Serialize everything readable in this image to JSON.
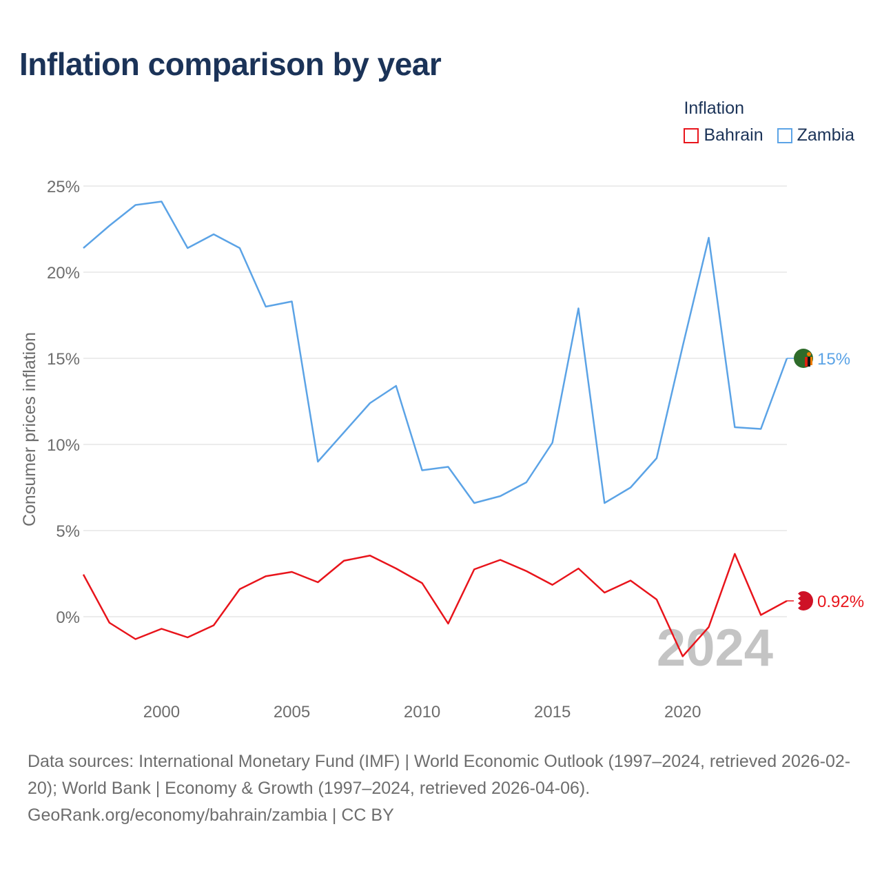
{
  "chart_data": {
    "type": "line",
    "title": "Inflation comparison by year",
    "ylabel": "Consumer prices inflation",
    "xlabel": "",
    "x": [
      1997,
      1998,
      1999,
      2000,
      2001,
      2002,
      2003,
      2004,
      2005,
      2006,
      2007,
      2008,
      2009,
      2010,
      2011,
      2012,
      2013,
      2014,
      2015,
      2016,
      2017,
      2018,
      2019,
      2020,
      2021,
      2022,
      2023,
      2024
    ],
    "xlim": [
      1997,
      2024
    ],
    "ylim": [
      -5,
      25
    ],
    "xticks": [
      2000,
      2005,
      2010,
      2015,
      2020
    ],
    "yticks": [
      0,
      5,
      10,
      15,
      20,
      25
    ],
    "ytick_labels": [
      "0%",
      "5%",
      "10%",
      "15%",
      "20%",
      "25%"
    ],
    "xtick_labels": [
      "2000",
      "2005",
      "2010",
      "2015",
      "2020"
    ],
    "legend_title": "Inflation",
    "legend_position": "top-right",
    "grid": true,
    "series": [
      {
        "name": "Bahrain",
        "color": "#e8141b",
        "end_label": "0.92%",
        "values": [
          2.45,
          -0.35,
          -1.3,
          -0.7,
          -1.2,
          -0.5,
          1.6,
          2.35,
          2.6,
          2.0,
          3.25,
          3.55,
          2.8,
          1.95,
          -0.4,
          2.75,
          3.3,
          2.65,
          1.85,
          2.8,
          1.4,
          2.1,
          1.0,
          -2.3,
          -0.6,
          3.65,
          0.1,
          0.92
        ]
      },
      {
        "name": "Zambia",
        "color": "#5ba3e6",
        "end_label": "15%",
        "values": [
          21.4,
          22.7,
          23.9,
          24.1,
          21.4,
          22.2,
          21.4,
          18.0,
          18.3,
          9.0,
          10.7,
          12.4,
          13.4,
          8.5,
          8.7,
          6.6,
          7.0,
          7.8,
          10.1,
          17.9,
          6.6,
          7.5,
          9.2,
          15.7,
          22.0,
          11.0,
          10.9,
          15.0
        ]
      }
    ],
    "watermark_year": "2024"
  },
  "sources": {
    "text": "Data sources: International Monetary Fund (IMF) | World Economic Outlook (1997–2024, retrieved 2026-02-20); World Bank | Economy & Growth (1997–2024, retrieved 2026-04-06).",
    "credit": "GeoRank.org/economy/bahrain/zambia | CC BY"
  }
}
